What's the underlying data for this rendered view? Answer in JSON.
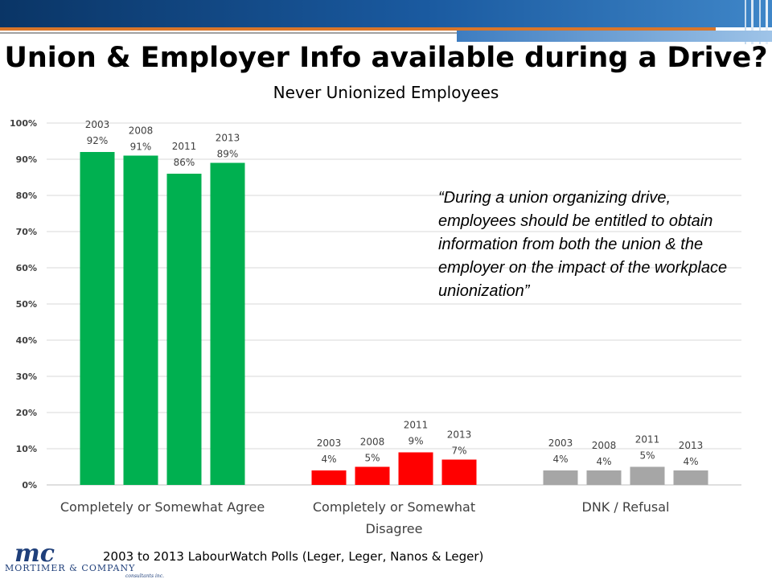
{
  "slide": {
    "title": "Union & Employer Info available during a Drive?",
    "subtitle": "Never Unionized Employees",
    "quote": "“During a union organizing drive, employees should be entitled to obtain information from both the union & the employer on the impact of the workplace unionization”",
    "source": "2003 to 2013 LabourWatch Polls (Leger, Leger, Nanos & Leger)",
    "logo": {
      "monogram": "mc",
      "name": "MORTIMER & COMPANY",
      "tagline": "consultants inc."
    }
  },
  "chart_data": {
    "type": "bar",
    "categories": [
      "Completely or Somewhat Agree",
      "Completely or Somewhat Disagree",
      "DNK / Refusal"
    ],
    "category_label_lines": [
      [
        "Completely or Somewhat Agree"
      ],
      [
        "Completely or Somewhat",
        "Disagree"
      ],
      [
        "DNK / Refusal"
      ]
    ],
    "series": [
      {
        "name": "2003",
        "values": [
          92,
          4,
          4
        ]
      },
      {
        "name": "2008",
        "values": [
          91,
          5,
          4
        ]
      },
      {
        "name": "2011",
        "values": [
          86,
          9,
          5
        ]
      },
      {
        "name": "2013",
        "values": [
          89,
          7,
          4
        ]
      }
    ],
    "value_labels": [
      [
        "92%",
        "4%",
        "4%"
      ],
      [
        "91%",
        "5%",
        "4%"
      ],
      [
        "86%",
        "9%",
        "5%"
      ],
      [
        "89%",
        "7%",
        "4%"
      ]
    ],
    "category_colors": [
      "#00b050",
      "#ff0000",
      "#a6a6a6"
    ],
    "ylim": [
      0,
      100
    ],
    "yticks": [
      0,
      10,
      20,
      30,
      40,
      50,
      60,
      70,
      80,
      90,
      100
    ],
    "ytick_labels": [
      "0%",
      "10%",
      "20%",
      "30%",
      "40%",
      "50%",
      "60%",
      "70%",
      "80%",
      "90%",
      "100%"
    ],
    "grid": true,
    "legend": "none"
  }
}
